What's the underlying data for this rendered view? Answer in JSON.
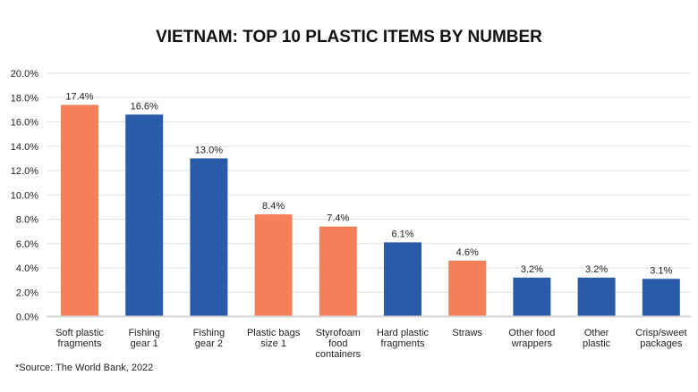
{
  "chart_data": {
    "type": "bar",
    "title": "VIETNAM: TOP 10 PLASTIC ITEMS BY NUMBER",
    "xlabel": "",
    "ylabel": "",
    "ylim": [
      0,
      20
    ],
    "y_ticks": [
      "0.0%",
      "2.0%",
      "4.0%",
      "6.0%",
      "8.0%",
      "10.0%",
      "12.0%",
      "14.0%",
      "16.0%",
      "18.0%",
      "20.0%"
    ],
    "grid": true,
    "categories": [
      [
        "Soft plastic",
        "fragments"
      ],
      [
        "Fishing",
        "gear 1"
      ],
      [
        "Fishing",
        "gear 2"
      ],
      [
        "Plastic bags",
        "size 1"
      ],
      [
        "Styrofoam",
        "food",
        "containers"
      ],
      [
        "Hard plastic",
        "fragments"
      ],
      [
        "Straws"
      ],
      [
        "Other food",
        "wrappers"
      ],
      [
        "Other",
        "plastic"
      ],
      [
        "Crisp/sweet",
        "packages"
      ]
    ],
    "values": [
      17.4,
      16.6,
      13.0,
      8.4,
      7.4,
      6.1,
      4.6,
      3.2,
      3.2,
      3.1
    ],
    "data_labels": [
      "17.4%",
      "16.6%",
      "13.0%",
      "8.4%",
      "7.4%",
      "6.1%",
      "4.6%",
      "3.2%",
      "3.2%",
      "3.1%"
    ],
    "bar_colors": [
      "#F4805A",
      "#2A5BA8",
      "#2A5BA8",
      "#F4805A",
      "#F4805A",
      "#2A5BA8",
      "#F4805A",
      "#2A5BA8",
      "#2A5BA8",
      "#2A5BA8"
    ],
    "source": "*Source: The World Bank, 2022"
  }
}
